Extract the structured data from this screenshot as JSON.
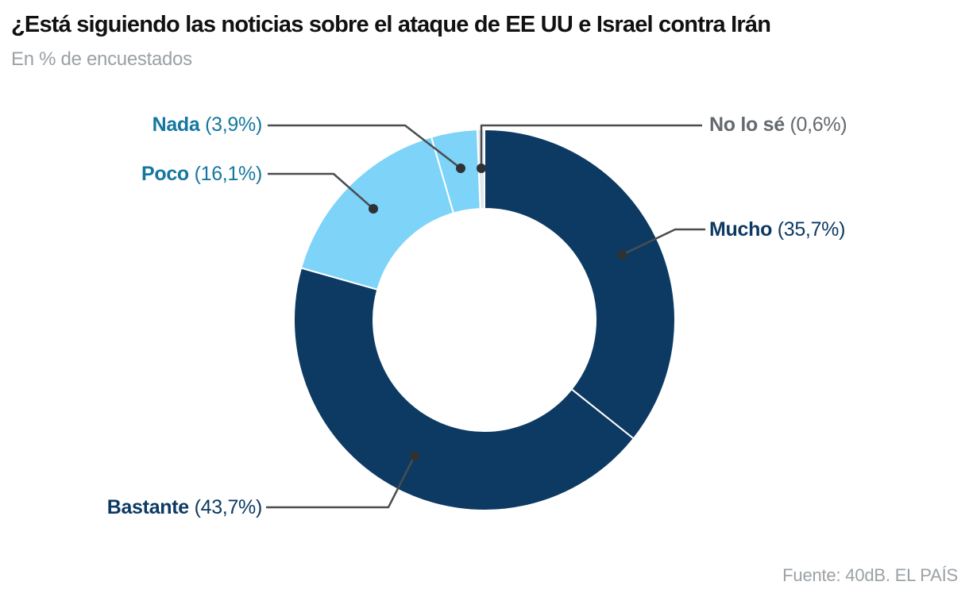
{
  "header": {
    "title": "¿Está siguiendo las noticias sobre el ataque de EE UU e Israel contra Irán",
    "subtitle": "En % de encuestados"
  },
  "footer": {
    "source": "Fuente: 40dB. EL PAÍS"
  },
  "chart_data": {
    "type": "pie",
    "variant": "donut",
    "title": "¿Está siguiendo las noticias sobre el ataque de EE UU e Israel contra Irán",
    "unit_note": "En % de encuestados",
    "direction": "clockwise",
    "start_angle_deg": 0,
    "categories": [
      "Mucho",
      "Bastante",
      "Poco",
      "Nada",
      "No lo sé"
    ],
    "values": [
      35.7,
      43.7,
      16.1,
      3.9,
      0.6
    ],
    "slices": [
      {
        "label": "Mucho",
        "value": 35.7,
        "display": "(35,7%)",
        "color": "#0d3a63",
        "label_color": "#0d3a63"
      },
      {
        "label": "Bastante",
        "value": 43.7,
        "display": "(43,7%)",
        "color": "#0d3a63",
        "label_color": "#0d3a63"
      },
      {
        "label": "Poco",
        "value": 16.1,
        "display": "(16,1%)",
        "color": "#7dd3f8",
        "label_color": "#1577a0"
      },
      {
        "label": "Nada",
        "value": 3.9,
        "display": "(3,9%)",
        "color": "#7dd3f8",
        "label_color": "#1577a0"
      },
      {
        "label": "No lo sé",
        "value": 0.6,
        "display": "(0,6%)",
        "color": "#e2e7ea",
        "label_color": "#63696e"
      }
    ],
    "source": "Fuente: 40dB. EL PAÍS"
  },
  "colors": {
    "title_text": "#111111",
    "muted_text": "#9ba1a5",
    "navy": "#0d3a63",
    "light_blue": "#7dd3f8",
    "pale_gray": "#e2e7ea",
    "teal_label": "#1577a0",
    "gray_label": "#63696e",
    "leader_line": "#4a4d4f",
    "leader_dot": "#2f3234"
  }
}
